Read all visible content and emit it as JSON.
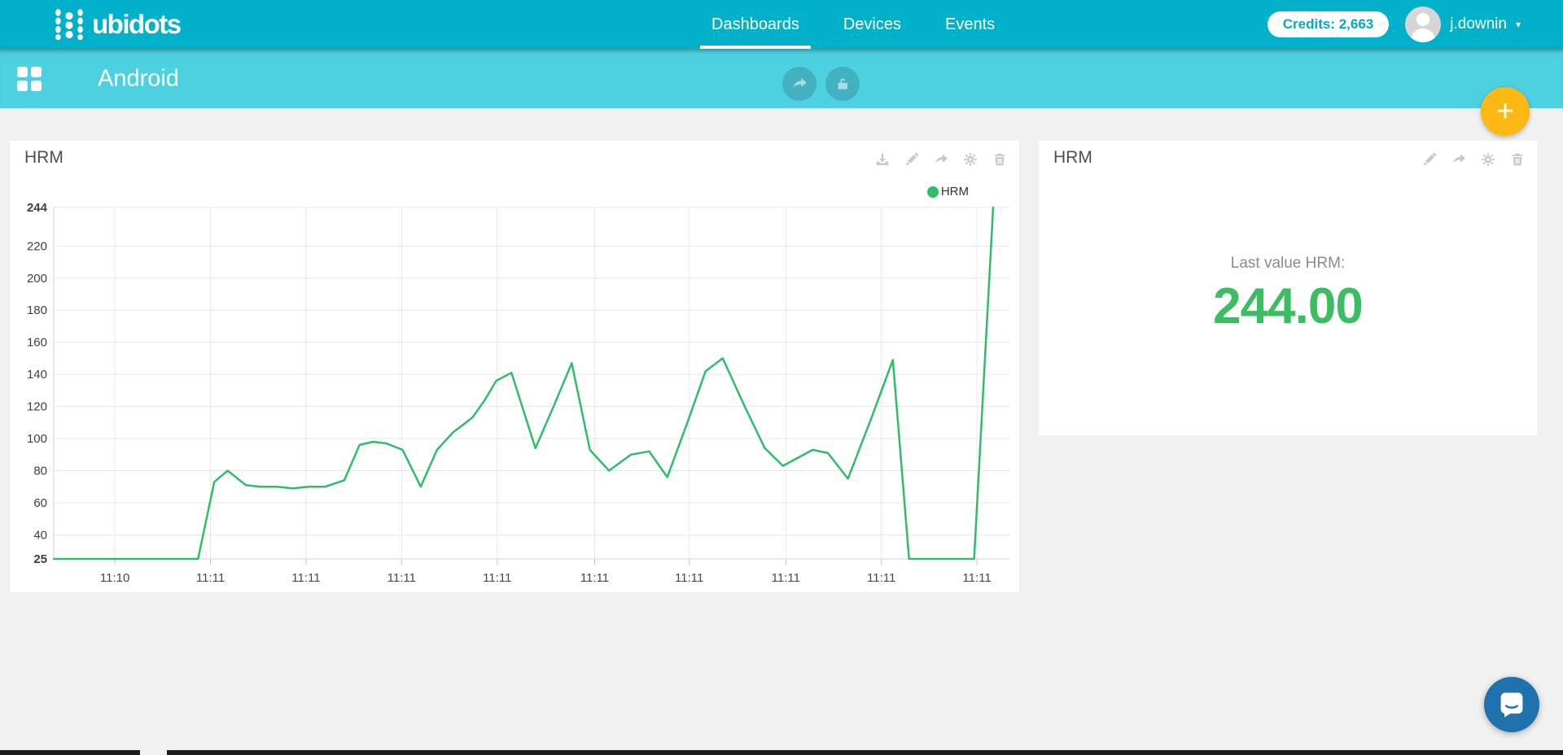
{
  "navbar": {
    "brand": "ubidots",
    "tabs": [
      {
        "label": "Dashboards",
        "active": true
      },
      {
        "label": "Devices",
        "active": false
      },
      {
        "label": "Events",
        "active": false
      }
    ],
    "credits": "Credits: 2,663",
    "username": "j.downin",
    "bar_color": "#00b1c9"
  },
  "subheader": {
    "title": "Android",
    "bar_color": "#4dd0e0",
    "actions": [
      "share",
      "unlock"
    ]
  },
  "fab": {
    "label": "+",
    "color": "#fdb813"
  },
  "chart_widget": {
    "title": "HRM",
    "legend_label": "HRM",
    "toolbar": [
      "download",
      "edit",
      "share",
      "settings",
      "delete"
    ]
  },
  "value_widget": {
    "title": "HRM",
    "label": "Last value HRM:",
    "value": "244.00",
    "value_color": "#3dbd61",
    "toolbar": [
      "edit",
      "share",
      "settings",
      "delete"
    ]
  },
  "chart_data": {
    "type": "line",
    "title": "HRM",
    "legend": [
      "HRM"
    ],
    "legend_position": "top-right",
    "grid": true,
    "ylim": [
      25,
      244
    ],
    "y_ticks": [
      244,
      220,
      200,
      180,
      160,
      140,
      120,
      100,
      80,
      60,
      40,
      25
    ],
    "x_ticks": [
      {
        "pos": 0.064,
        "label": "11:10"
      },
      {
        "pos": 0.164,
        "label": "11:11"
      },
      {
        "pos": 0.264,
        "label": "11:11"
      },
      {
        "pos": 0.364,
        "label": "11:11"
      },
      {
        "pos": 0.464,
        "label": "11:11"
      },
      {
        "pos": 0.566,
        "label": "11:11"
      },
      {
        "pos": 0.665,
        "label": "11:11"
      },
      {
        "pos": 0.766,
        "label": "11:11"
      },
      {
        "pos": 0.866,
        "label": "11:11"
      },
      {
        "pos": 0.966,
        "label": "11:11"
      }
    ],
    "line_color": "#2fbe67",
    "series": [
      {
        "name": "HRM",
        "points": [
          [
            0.0,
            25
          ],
          [
            0.029,
            25
          ],
          [
            0.063,
            25
          ],
          [
            0.097,
            25
          ],
          [
            0.131,
            25
          ],
          [
            0.151,
            25
          ],
          [
            0.168,
            73
          ],
          [
            0.182,
            80
          ],
          [
            0.201,
            71
          ],
          [
            0.216,
            70
          ],
          [
            0.233,
            70
          ],
          [
            0.25,
            69
          ],
          [
            0.267,
            70
          ],
          [
            0.284,
            70
          ],
          [
            0.304,
            74
          ],
          [
            0.32,
            96
          ],
          [
            0.334,
            98
          ],
          [
            0.348,
            97
          ],
          [
            0.365,
            93
          ],
          [
            0.384,
            70
          ],
          [
            0.401,
            93
          ],
          [
            0.418,
            104
          ],
          [
            0.438,
            113
          ],
          [
            0.451,
            124
          ],
          [
            0.463,
            136
          ],
          [
            0.479,
            141
          ],
          [
            0.504,
            94
          ],
          [
            0.523,
            120
          ],
          [
            0.542,
            147
          ],
          [
            0.561,
            93
          ],
          [
            0.581,
            80
          ],
          [
            0.604,
            90
          ],
          [
            0.623,
            92
          ],
          [
            0.642,
            76
          ],
          [
            0.663,
            110
          ],
          [
            0.682,
            142
          ],
          [
            0.7,
            150
          ],
          [
            0.723,
            120
          ],
          [
            0.744,
            94
          ],
          [
            0.763,
            83
          ],
          [
            0.794,
            93
          ],
          [
            0.81,
            91
          ],
          [
            0.831,
            75
          ],
          [
            0.855,
            112
          ],
          [
            0.878,
            149
          ],
          [
            0.895,
            25
          ],
          [
            0.915,
            25
          ],
          [
            0.936,
            25
          ],
          [
            0.963,
            25
          ],
          [
            0.983,
            244
          ]
        ]
      }
    ]
  },
  "chat": {
    "tooltip": "chat"
  }
}
